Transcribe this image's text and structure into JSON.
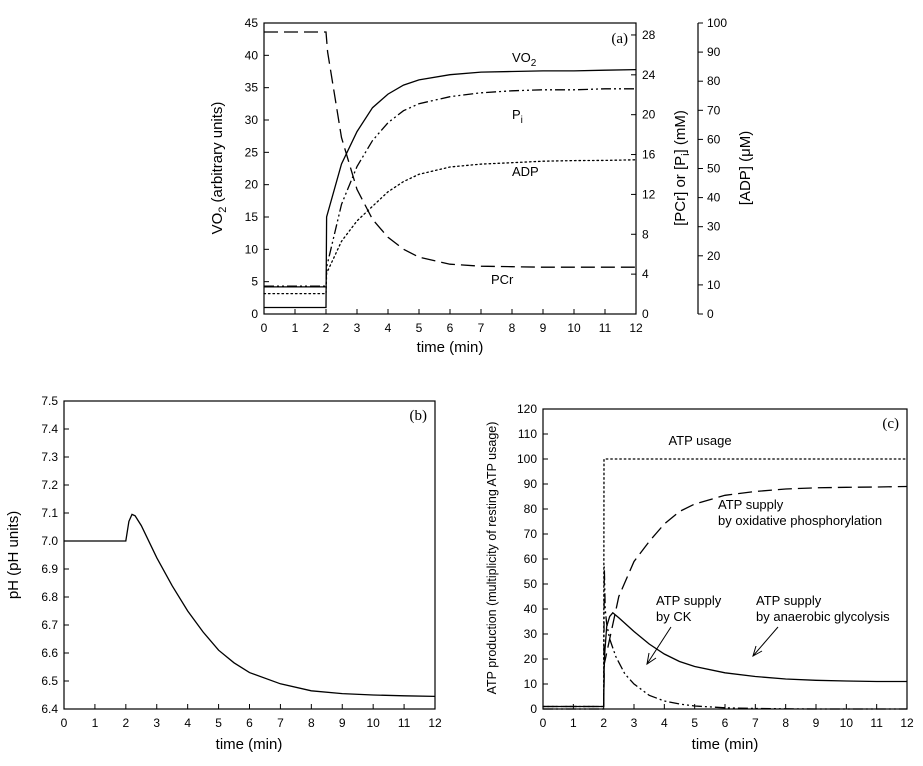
{
  "chart_data": [
    {
      "type": "line",
      "panel_label": "(a)",
      "xlabel": "time (min)",
      "ylabel": "VO2 (arbitrary units)",
      "ylabel_main": "VO",
      "ylabel_sub": "2",
      "ylabel_rest": " (arbitrary units)",
      "ylabel_right1": "[PCr] or [Pi] (mM)",
      "ylabel_right1_a": "[PCr] or [P",
      "ylabel_right1_sub": "i",
      "ylabel_right1_b": "] (mM)",
      "ylabel_right2": "[ADP] (μM)",
      "xlim": [
        0,
        12
      ],
      "ylim": [
        0,
        45
      ],
      "ylim_right1": [
        0,
        29.2
      ],
      "ylim_right2": [
        0,
        100
      ],
      "xticks": [
        "0",
        "1",
        "2",
        "3",
        "4",
        "5",
        "6",
        "7",
        "8",
        "9",
        "10",
        "11",
        "12"
      ],
      "yticks": [
        "0",
        "5",
        "10",
        "15",
        "20",
        "25",
        "30",
        "35",
        "40",
        "45"
      ],
      "yticks_right1": [
        "0",
        "4",
        "8",
        "12",
        "16",
        "20",
        "24",
        "28"
      ],
      "yticks_right2": [
        "0",
        "10",
        "20",
        "30",
        "40",
        "50",
        "60",
        "70",
        "80",
        "90",
        "100"
      ],
      "series": [
        {
          "name": "VO2",
          "label_main": "VO",
          "label_sub": "2",
          "axis": "left",
          "style": "solid",
          "x": [
            0,
            2,
            2.02,
            2.5,
            3,
            3.5,
            4,
            4.5,
            5,
            6,
            7,
            8,
            9,
            10,
            11,
            12
          ],
          "y": [
            1,
            1,
            15,
            23.2,
            28.2,
            31.9,
            34,
            35.4,
            36.2,
            37,
            37.4,
            37.5,
            37.6,
            37.6,
            37.7,
            37.8
          ]
        },
        {
          "name": "Pi",
          "label_main": "P",
          "label_sub": "i",
          "axis": "right1",
          "style": "dashdotdot",
          "x": [
            0,
            2,
            2.02,
            2.5,
            3,
            3.5,
            4,
            4.5,
            5,
            6,
            7,
            8,
            9,
            10,
            11,
            12
          ],
          "y": [
            2.8,
            2.8,
            4.7,
            11,
            14.8,
            17.4,
            19.2,
            20.4,
            21.1,
            21.8,
            22.2,
            22.4,
            22.5,
            22.5,
            22.6,
            22.6
          ]
        },
        {
          "name": "ADP",
          "label_main": "ADP",
          "axis": "right2",
          "style": "dotted",
          "x": [
            0,
            2,
            2.02,
            2.5,
            3,
            3.5,
            4,
            4.5,
            5,
            6,
            7,
            8,
            9,
            10,
            11,
            12
          ],
          "y": [
            7,
            7,
            14,
            25,
            32,
            37,
            42,
            45.5,
            48,
            50.5,
            51.5,
            52,
            52.5,
            52.7,
            52.8,
            53
          ]
        },
        {
          "name": "PCr",
          "label_main": "PCr",
          "axis": "right1",
          "style": "dashed",
          "x": [
            0,
            2,
            2.05,
            2.5,
            3,
            3.5,
            4,
            4.5,
            5,
            6,
            7,
            8,
            9,
            10,
            11,
            12
          ],
          "y": [
            28.3,
            28.3,
            26.3,
            17.7,
            12.5,
            9.5,
            7.7,
            6.5,
            5.7,
            5.0,
            4.8,
            4.75,
            4.7,
            4.7,
            4.7,
            4.7
          ]
        }
      ],
      "vo2_rest_marker": 4.2
    },
    {
      "type": "line",
      "panel_label": "(b)",
      "xlabel": "time (min)",
      "ylabel": "pH (pH units)",
      "xlim": [
        0,
        12
      ],
      "ylim": [
        6.4,
        7.5
      ],
      "xticks": [
        "0",
        "1",
        "2",
        "3",
        "4",
        "5",
        "6",
        "7",
        "8",
        "9",
        "10",
        "11",
        "12"
      ],
      "yticks": [
        "6.4",
        "6.5",
        "6.6",
        "6.7",
        "6.8",
        "6.9",
        "7.0",
        "7.1",
        "7.2",
        "7.3",
        "7.4",
        "7.5"
      ],
      "series": [
        {
          "name": "pH",
          "axis": "left",
          "style": "solid",
          "x": [
            0,
            2,
            2.1,
            2.2,
            2.3,
            2.5,
            3,
            3.5,
            4,
            4.5,
            5,
            5.5,
            6,
            7,
            8,
            9,
            10,
            11,
            12
          ],
          "y": [
            7.0,
            7.0,
            7.07,
            7.095,
            7.09,
            7.055,
            6.94,
            6.84,
            6.75,
            6.675,
            6.61,
            6.565,
            6.53,
            6.49,
            6.465,
            6.455,
            6.45,
            6.447,
            6.445
          ]
        }
      ]
    },
    {
      "type": "line",
      "panel_label": "(c)",
      "xlabel": "time (min)",
      "ylabel": "ATP production (multiplicity of resting ATP usage)",
      "xlim": [
        0,
        12
      ],
      "ylim": [
        0,
        120
      ],
      "xticks": [
        "0",
        "1",
        "2",
        "3",
        "4",
        "5",
        "6",
        "7",
        "8",
        "9",
        "10",
        "11",
        "12"
      ],
      "yticks": [
        "0",
        "10",
        "20",
        "30",
        "40",
        "50",
        "60",
        "70",
        "80",
        "90",
        "100",
        "110",
        "120"
      ],
      "annotations": {
        "usage": "ATP usage",
        "oxphos_1": "ATP supply",
        "oxphos_2": "by oxidative phosphorylation",
        "ck_1": "ATP supply",
        "ck_2": "by CK",
        "glyc_1": "ATP supply",
        "glyc_2": "by anaerobic glycolysis"
      },
      "series": [
        {
          "name": "ATP usage",
          "style": "dotted",
          "x": [
            0,
            2,
            2.01,
            12
          ],
          "y": [
            1,
            1,
            100,
            100
          ]
        },
        {
          "name": "ATP supply by oxidative phosphorylation",
          "style": "dashed",
          "x": [
            0,
            2,
            2.02,
            2.5,
            3,
            3.5,
            4,
            4.5,
            5,
            6,
            7,
            8,
            9,
            10,
            11,
            12
          ],
          "y": [
            1,
            1,
            18,
            45,
            59,
            67,
            74,
            79,
            82,
            85.5,
            87,
            88,
            88.5,
            88.7,
            88.8,
            89
          ]
        },
        {
          "name": "ATP supply by CK",
          "style": "dashdotdot",
          "x": [
            0,
            2,
            2.02,
            2.05,
            2.1,
            2.2,
            2.4,
            2.7,
            3,
            3.5,
            4,
            4.5,
            5,
            6,
            7,
            8,
            9,
            10,
            11,
            12
          ],
          "y": [
            0,
            0,
            57,
            40,
            34,
            28,
            21,
            14,
            10,
            5.5,
            3.2,
            2,
            1.2,
            0.5,
            0.2,
            0.1,
            0,
            0,
            0,
            0
          ]
        },
        {
          "name": "ATP supply by anaerobic glycolysis",
          "style": "solid",
          "x": [
            0,
            2,
            2.02,
            2.1,
            2.2,
            2.3,
            2.5,
            3,
            3.5,
            4,
            4.5,
            5,
            6,
            7,
            8,
            9,
            10,
            11,
            12
          ],
          "y": [
            1,
            1,
            20,
            33,
            37,
            38.5,
            36.5,
            31,
            26,
            22,
            19,
            17,
            14.5,
            13,
            12,
            11.5,
            11.2,
            11,
            11
          ]
        }
      ]
    }
  ]
}
